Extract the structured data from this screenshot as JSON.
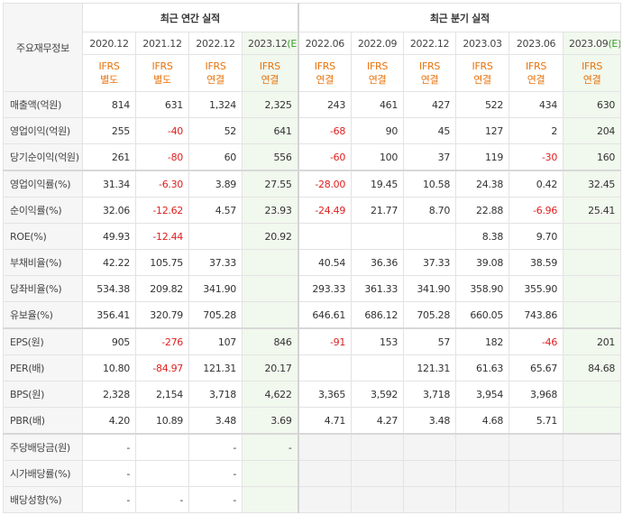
{
  "table": {
    "corner": "주요재무정보",
    "groups": [
      "최근 연간 실적",
      "최근 분기 실적"
    ],
    "columns": [
      {
        "period": "2020.12",
        "standard": "IFRS",
        "basis": "별도"
      },
      {
        "period": "2021.12",
        "standard": "IFRS",
        "basis": "별도"
      },
      {
        "period": "2022.12",
        "standard": "IFRS",
        "basis": "연결"
      },
      {
        "period": "2023.12",
        "estimate": "(E)",
        "standard": "IFRS",
        "basis": "연결"
      },
      {
        "period": "2022.06",
        "standard": "IFRS",
        "basis": "연결"
      },
      {
        "period": "2022.09",
        "standard": "IFRS",
        "basis": "연결"
      },
      {
        "period": "2022.12",
        "standard": "IFRS",
        "basis": "연결"
      },
      {
        "period": "2023.03",
        "standard": "IFRS",
        "basis": "연결"
      },
      {
        "period": "2023.06",
        "standard": "IFRS",
        "basis": "연결"
      },
      {
        "period": "2023.09",
        "estimate": "(E)",
        "standard": "IFRS",
        "basis": "연결"
      }
    ],
    "rows": [
      {
        "label": "매출액(억원)",
        "cells": [
          "814",
          "631",
          "1,324",
          "2,325",
          "243",
          "461",
          "427",
          "522",
          "434",
          "630"
        ]
      },
      {
        "label": "영업이익(억원)",
        "cells": [
          "255",
          "-40",
          "52",
          "641",
          "-68",
          "90",
          "45",
          "127",
          "2",
          "204"
        ]
      },
      {
        "label": "당기순이익(억원)",
        "cells": [
          "261",
          "-80",
          "60",
          "556",
          "-60",
          "100",
          "37",
          "119",
          "-30",
          "160"
        ]
      },
      {
        "label": "영업이익률(%)",
        "cells": [
          "31.34",
          "-6.30",
          "3.89",
          "27.55",
          "-28.00",
          "19.45",
          "10.58",
          "24.38",
          "0.42",
          "32.45"
        ]
      },
      {
        "label": "순이익률(%)",
        "cells": [
          "32.06",
          "-12.62",
          "4.57",
          "23.93",
          "-24.49",
          "21.77",
          "8.70",
          "22.88",
          "-6.96",
          "25.41"
        ]
      },
      {
        "label": "ROE(%)",
        "cells": [
          "49.93",
          "-12.44",
          null,
          "20.92",
          null,
          null,
          null,
          "8.38",
          "9.70",
          null
        ]
      },
      {
        "label": "부채비율(%)",
        "cells": [
          "42.22",
          "105.75",
          "37.33",
          null,
          "40.54",
          "36.36",
          "37.33",
          "39.08",
          "38.59",
          null
        ]
      },
      {
        "label": "당좌비율(%)",
        "cells": [
          "534.38",
          "209.82",
          "341.90",
          null,
          "293.33",
          "361.33",
          "341.90",
          "358.90",
          "355.90",
          null
        ]
      },
      {
        "label": "유보율(%)",
        "cells": [
          "356.41",
          "320.79",
          "705.28",
          null,
          "646.61",
          "686.12",
          "705.28",
          "660.05",
          "743.86",
          null
        ]
      },
      {
        "label": "EPS(원)",
        "cells": [
          "905",
          "-276",
          "107",
          "846",
          "-91",
          "153",
          "57",
          "182",
          "-46",
          "201"
        ]
      },
      {
        "label": "PER(배)",
        "cells": [
          "10.80",
          "-84.97",
          "121.31",
          "20.17",
          null,
          null,
          "121.31",
          "61.63",
          "65.67",
          "84.68"
        ]
      },
      {
        "label": "BPS(원)",
        "cells": [
          "2,328",
          "2,154",
          "3,718",
          "4,622",
          "3,365",
          "3,592",
          "3,718",
          "3,954",
          "3,968",
          null
        ]
      },
      {
        "label": "PBR(배)",
        "cells": [
          "4.20",
          "10.89",
          "3.48",
          "3.69",
          "4.71",
          "4.27",
          "3.48",
          "4.68",
          "5.71",
          null
        ]
      },
      {
        "label": "주당배당금(원)",
        "cells": [
          "-",
          null,
          "-",
          "-",
          null,
          null,
          null,
          null,
          null,
          null
        ]
      },
      {
        "label": "시가배당률(%)",
        "cells": [
          "-",
          null,
          "-",
          null,
          null,
          null,
          null,
          null,
          null,
          null
        ]
      },
      {
        "label": "배당성향(%)",
        "cells": [
          "-",
          "-",
          "-",
          null,
          null,
          null,
          null,
          null,
          null,
          null
        ]
      }
    ]
  }
}
